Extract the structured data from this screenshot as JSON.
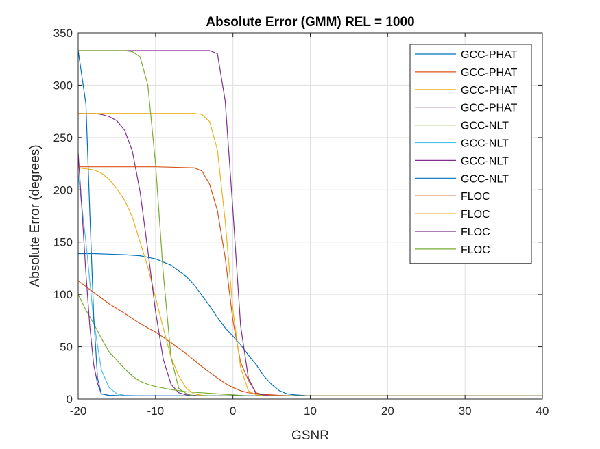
{
  "chart_data": {
    "type": "line",
    "title": "Absolute Error (GMM) REL = 1000",
    "xlabel": "GSNR",
    "ylabel": "Absolute Error (degrees)",
    "xlim": [
      -20,
      40
    ],
    "ylim": [
      0,
      350
    ],
    "xticks": [
      -20,
      -10,
      0,
      10,
      20,
      30,
      40
    ],
    "yticks": [
      0,
      50,
      100,
      150,
      200,
      250,
      300,
      350
    ],
    "grid": true,
    "legend_position": "top-right",
    "colors": {
      "blue": "#0072BD",
      "orange": "#D95319",
      "yellow": "#EDB120",
      "purple": "#7E2F8E",
      "green": "#77AC30",
      "cyan": "#4DBEEE",
      "darkred": "#A2142F"
    },
    "series": [
      {
        "name": "GCC-PHAT",
        "color": "#0072BD",
        "x": [
          -20,
          -18,
          -16,
          -14,
          -12,
          -10,
          -8,
          -6,
          -5,
          -4,
          -3,
          -2,
          -1,
          0,
          1,
          2,
          3,
          4,
          5,
          6,
          7,
          8,
          9,
          10,
          15,
          20,
          25,
          30,
          35,
          40
        ],
        "y": [
          139,
          139,
          138.5,
          138,
          137,
          134,
          128,
          117,
          109,
          99,
          89,
          78,
          68,
          60,
          52,
          42,
          33,
          22,
          14,
          8,
          5,
          4,
          3.5,
          3,
          3,
          3,
          3,
          3,
          3,
          3
        ]
      },
      {
        "name": "GCC-PHAT",
        "color": "#D95319",
        "x": [
          -20,
          -18,
          -16,
          -14,
          -12,
          -10,
          -8,
          -6,
          -4,
          -2,
          -1,
          0,
          1,
          2,
          4,
          6,
          8,
          10,
          15,
          20,
          25,
          30,
          35,
          40
        ],
        "y": [
          113,
          102,
          91,
          82,
          72,
          64,
          54,
          43,
          31,
          20,
          15,
          11,
          8,
          6,
          4.5,
          3.5,
          3,
          3,
          3,
          3,
          3,
          3,
          3,
          3
        ]
      },
      {
        "name": "GCC-PHAT",
        "color": "#EDB120",
        "x": [
          -20,
          -18,
          -17,
          -16,
          -15,
          -14,
          -13,
          -12,
          -11,
          -10,
          -9,
          -8,
          -7,
          -6,
          -5,
          -4,
          -3,
          -2,
          0,
          5,
          10,
          20,
          30,
          40
        ],
        "y": [
          221,
          219,
          216,
          210,
          201,
          190,
          174,
          150,
          126,
          97,
          68,
          40,
          22,
          10,
          5,
          3.5,
          3,
          3,
          3,
          3,
          3,
          3,
          3,
          3
        ]
      },
      {
        "name": "GCC-PHAT",
        "color": "#7E2F8E",
        "x": [
          -20,
          -18,
          -17,
          -16,
          -15,
          -14,
          -13,
          -12,
          -11,
          -10,
          -9,
          -8,
          -7,
          -6,
          -5,
          -4,
          -2,
          0,
          5,
          10,
          20,
          30,
          40
        ],
        "y": [
          273,
          273,
          272,
          270,
          266,
          257,
          237,
          198,
          142,
          84,
          38,
          14,
          6,
          4,
          3.5,
          3,
          3,
          3,
          3,
          3,
          3,
          3,
          3
        ]
      },
      {
        "name": "GCC-NLT",
        "color": "#77AC30",
        "x": [
          -20,
          -19,
          -18,
          -17,
          -16,
          -15,
          -14,
          -13,
          -12,
          -11,
          -10,
          -8,
          -6,
          -4,
          -2,
          0,
          1,
          2,
          5,
          10,
          20,
          30,
          40
        ],
        "y": [
          100,
          85,
          72,
          58,
          45,
          37,
          29,
          22,
          17,
          14,
          12,
          9,
          7,
          6,
          5,
          4,
          3.5,
          3,
          3,
          3,
          3,
          3,
          3
        ]
      },
      {
        "name": "GCC-NLT",
        "color": "#4DBEEE",
        "x": [
          -20,
          -19,
          -18,
          -17,
          -16,
          -15,
          -14,
          -12,
          -10,
          0,
          10,
          20,
          30,
          40
        ],
        "y": [
          215,
          150,
          75,
          28,
          11,
          5,
          3.5,
          3,
          3,
          3,
          3,
          3,
          3,
          3
        ]
      },
      {
        "name": "GCC-NLT",
        "color": "#7E2F8E",
        "x": [
          -20,
          -19.5,
          -19,
          -18.5,
          -18,
          -17.5,
          -17,
          -16,
          -14,
          -10,
          0,
          10,
          20,
          30,
          40
        ],
        "y": [
          235,
          180,
          120,
          70,
          33,
          15,
          5,
          3.5,
          3,
          3,
          3,
          3,
          3,
          3,
          3
        ]
      },
      {
        "name": "GCC-NLT",
        "color": "#0072BD",
        "x": [
          -20,
          -19,
          -18.5,
          -18,
          -17.5,
          -17,
          -16,
          -14,
          -10,
          0,
          10,
          20,
          30,
          40
        ],
        "y": [
          333,
          282,
          180,
          80,
          20,
          5,
          3.5,
          3,
          3,
          3,
          3,
          3,
          3,
          3
        ]
      },
      {
        "name": "FLOC",
        "color": "#D95319",
        "x": [
          -20,
          -15,
          -10,
          -5,
          -4,
          -3,
          -2,
          -1,
          0,
          1,
          2,
          3,
          4,
          5,
          10,
          20,
          30,
          40
        ],
        "y": [
          222,
          222,
          222,
          221,
          218,
          205,
          180,
          135,
          75,
          35,
          18,
          6,
          4,
          3,
          3,
          3,
          3,
          3
        ]
      },
      {
        "name": "FLOC",
        "color": "#EDB120",
        "x": [
          -20,
          -15,
          -10,
          -5,
          -4,
          -3,
          -2,
          -1,
          0,
          1,
          2,
          3,
          5,
          10,
          20,
          30,
          40
        ],
        "y": [
          273,
          273,
          273,
          273,
          272,
          265,
          238,
          170,
          85,
          30,
          8,
          4,
          3,
          3,
          3,
          3,
          3
        ]
      },
      {
        "name": "FLOC",
        "color": "#7E2F8E",
        "x": [
          -20,
          -15,
          -10,
          -5,
          -3,
          -2,
          -1,
          0,
          1,
          2,
          3,
          5,
          10,
          20,
          30,
          40
        ],
        "y": [
          333,
          333,
          333,
          333,
          333,
          330,
          285,
          180,
          70,
          20,
          5,
          3,
          3,
          3,
          3,
          3
        ]
      },
      {
        "name": "FLOC",
        "color": "#77AC30",
        "x": [
          -20,
          -18,
          -16,
          -14,
          -13,
          -12,
          -11,
          -10,
          -9,
          -8,
          -7,
          -6,
          -5,
          0,
          10,
          20,
          30,
          40
        ],
        "y": [
          333,
          333,
          333,
          333,
          332,
          327,
          300,
          225,
          120,
          40,
          10,
          5,
          3,
          3,
          3,
          3,
          3,
          3
        ]
      }
    ]
  }
}
